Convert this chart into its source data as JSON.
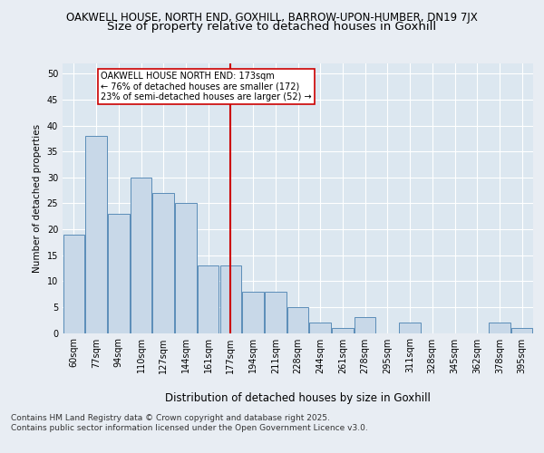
{
  "title1": "OAKWELL HOUSE, NORTH END, GOXHILL, BARROW-UPON-HUMBER, DN19 7JX",
  "title2": "Size of property relative to detached houses in Goxhill",
  "xlabel": "Distribution of detached houses by size in Goxhill",
  "ylabel": "Number of detached properties",
  "categories": [
    "60sqm",
    "77sqm",
    "94sqm",
    "110sqm",
    "127sqm",
    "144sqm",
    "161sqm",
    "177sqm",
    "194sqm",
    "211sqm",
    "228sqm",
    "244sqm",
    "261sqm",
    "278sqm",
    "295sqm",
    "311sqm",
    "328sqm",
    "345sqm",
    "362sqm",
    "378sqm",
    "395sqm"
  ],
  "values": [
    19,
    38,
    23,
    30,
    27,
    25,
    13,
    13,
    8,
    8,
    5,
    2,
    1,
    3,
    0,
    2,
    0,
    0,
    0,
    2,
    1
  ],
  "bar_color": "#c8d8e8",
  "bar_edge_color": "#5b8db8",
  "highlight_box_text": "OAKWELL HOUSE NORTH END: 173sqm\n← 76% of detached houses are smaller (172)\n23% of semi-detached houses are larger (52) →",
  "highlight_line_color": "#cc0000",
  "highlight_box_edge_color": "#cc0000",
  "ylim": [
    0,
    52
  ],
  "yticks": [
    0,
    5,
    10,
    15,
    20,
    25,
    30,
    35,
    40,
    45,
    50
  ],
  "bg_color": "#e8edf3",
  "plot_bg_color": "#dce7f0",
  "grid_color": "#ffffff",
  "footer": "Contains HM Land Registry data © Crown copyright and database right 2025.\nContains public sector information licensed under the Open Government Licence v3.0.",
  "title1_fontsize": 8.5,
  "title2_fontsize": 9.5,
  "xlabel_fontsize": 8.5,
  "ylabel_fontsize": 7.5,
  "tick_fontsize": 7,
  "footer_fontsize": 6.5,
  "annotation_fontsize": 7
}
